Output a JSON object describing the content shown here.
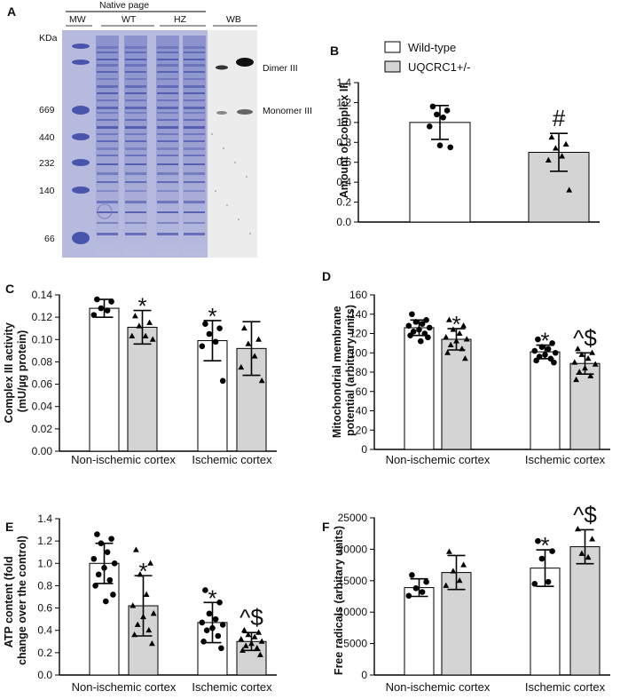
{
  "colors": {
    "wildtype_fill": "#ffffff",
    "mutant_fill": "#d4d4d4",
    "gel_bg": "#b9bde0",
    "gel_band": "#3d49a6",
    "wb_bg": "#e9e9e9",
    "axis": "#000000"
  },
  "gel": {
    "panel_label": "A",
    "header": "Native page",
    "lanes": [
      "MW",
      "WT",
      "HZ",
      "WB"
    ],
    "unit": "KDa",
    "markers": [
      "669",
      "440",
      "232",
      "140",
      "66"
    ],
    "band_labels": [
      "Dimer III",
      "Monomer III"
    ]
  },
  "legend": {
    "items": [
      "Wild-type",
      "UQCRC1+/-"
    ]
  },
  "chart_data": [
    {
      "id": "B",
      "panel_label": "B",
      "type": "bar",
      "ylabel": "Amount of complex III",
      "ylim": [
        0,
        1.4
      ],
      "yticks": [
        "0.0",
        "0.2",
        "0.4",
        "0.6",
        "0.8",
        "1.0",
        "1.2",
        "1.4"
      ],
      "groups": [
        {
          "label": "",
          "bars": [
            {
              "series": "Wild-type",
              "value": 1.0,
              "err": 0.17,
              "marker": "circle",
              "points": [
                1.16,
                1.12,
                1.08,
                1.05,
                0.96,
                0.75,
                0.77
              ],
              "annot": ""
            },
            {
              "series": "UQCRC1+/-",
              "value": 0.7,
              "err": 0.19,
              "marker": "triangle",
              "points": [
                0.85,
                0.78,
                0.74,
                0.66,
                0.62,
                0.32
              ],
              "annot": "#"
            }
          ]
        }
      ]
    },
    {
      "id": "C",
      "panel_label": "C",
      "type": "bar",
      "ylabel": "Complex III activity (mU/µg protein)",
      "ylim": [
        0,
        0.14
      ],
      "yticks": [
        "0.00",
        "0.02",
        "0.04",
        "0.06",
        "0.08",
        "0.10",
        "0.12",
        "0.14"
      ],
      "groups": [
        {
          "label": "Non-ischemic cortex",
          "bars": [
            {
              "series": "Wild-type",
              "value": 0.128,
              "err": 0.008,
              "marker": "circle",
              "points": [
                0.136,
                0.134,
                0.128,
                0.126,
                0.122
              ],
              "annot": ""
            },
            {
              "series": "UQCRC1+/-",
              "value": 0.111,
              "err": 0.015,
              "marker": "triangle",
              "points": [
                0.121,
                0.115,
                0.112,
                0.103,
                0.103,
                0.1
              ],
              "annot": "*"
            }
          ]
        },
        {
          "label": "Ischemic cortex",
          "bars": [
            {
              "series": "Wild-type",
              "value": 0.099,
              "err": 0.018,
              "marker": "circle",
              "points": [
                0.114,
                0.11,
                0.105,
                0.098,
                0.094,
                0.063
              ],
              "annot": "*"
            },
            {
              "series": "UQCRC1+/-",
              "value": 0.092,
              "err": 0.024,
              "marker": "triangle",
              "points": [
                0.11,
                0.1,
                0.096,
                0.085,
                0.075,
                0.063
              ],
              "annot": ""
            }
          ]
        }
      ]
    },
    {
      "id": "D",
      "panel_label": "D",
      "type": "bar",
      "ylabel": "Mitochondrial membrane potential (arbitrary units)",
      "ylim": [
        0,
        160
      ],
      "yticks": [
        "0",
        "20",
        "40",
        "60",
        "80",
        "100",
        "120",
        "140",
        "160"
      ],
      "groups": [
        {
          "label": "Non-ischemic cortex",
          "bars": [
            {
              "series": "Wild-type",
              "value": 126,
              "err": 8,
              "marker": "circle",
              "points": [
                140,
                134,
                132,
                130,
                128,
                126,
                124,
                122,
                120,
                118,
                116,
                112
              ],
              "annot": ""
            },
            {
              "series": "UQCRC1+/-",
              "value": 114,
              "err": 11,
              "marker": "triangle",
              "points": [
                134,
                128,
                124,
                120,
                116,
                114,
                112,
                108,
                104,
                100,
                94
              ],
              "annot": "*"
            }
          ]
        },
        {
          "label": "Ischemic cortex",
          "bars": [
            {
              "series": "Wild-type",
              "value": 101,
              "err": 7,
              "marker": "circle",
              "points": [
                114,
                110,
                106,
                104,
                102,
                100,
                98,
                96,
                94,
                92,
                90
              ],
              "annot": "*"
            },
            {
              "series": "UQCRC1+/-",
              "value": 89,
              "err": 11,
              "marker": "triangle",
              "points": [
                104,
                100,
                98,
                94,
                90,
                88,
                84,
                80,
                76,
                72
              ],
              "annot": "^$"
            }
          ]
        }
      ]
    },
    {
      "id": "E",
      "panel_label": "E",
      "type": "bar",
      "ylabel": "ATP content (fold change over the control)",
      "ylim": [
        0,
        1.4
      ],
      "yticks": [
        "0.0",
        "0.2",
        "0.4",
        "0.6",
        "0.8",
        "1.0",
        "1.2",
        "1.4"
      ],
      "groups": [
        {
          "label": "Non-ischemic cortex",
          "bars": [
            {
              "series": "Wild-type",
              "value": 1.0,
              "err": 0.18,
              "marker": "circle",
              "points": [
                1.26,
                1.22,
                1.18,
                1.1,
                1.04,
                1.0,
                0.96,
                0.9,
                0.85,
                0.8,
                0.72,
                0.66
              ],
              "annot": ""
            },
            {
              "series": "UQCRC1+/-",
              "value": 0.62,
              "err": 0.27,
              "marker": "triangle",
              "points": [
                1.12,
                1.0,
                0.9,
                0.72,
                0.62,
                0.55,
                0.52,
                0.45,
                0.4,
                0.36,
                0.28
              ],
              "annot": "*"
            }
          ]
        },
        {
          "label": "Ischemic cortex",
          "bars": [
            {
              "series": "Wild-type",
              "value": 0.47,
              "err": 0.18,
              "marker": "circle",
              "points": [
                0.76,
                0.65,
                0.55,
                0.5,
                0.47,
                0.45,
                0.42,
                0.4,
                0.35,
                0.3,
                0.24
              ],
              "annot": "*"
            },
            {
              "series": "UQCRC1+/-",
              "value": 0.3,
              "err": 0.08,
              "marker": "triangle",
              "points": [
                0.4,
                0.38,
                0.36,
                0.34,
                0.32,
                0.3,
                0.28,
                0.26,
                0.24,
                0.22,
                0.18
              ],
              "annot": "^$"
            }
          ]
        }
      ]
    },
    {
      "id": "F",
      "panel_label": "F",
      "type": "bar",
      "ylabel": "Free radicals (arbitary units)",
      "ylim": [
        0,
        25000
      ],
      "yticks": [
        "0",
        "5000",
        "10000",
        "15000",
        "20000",
        "25000"
      ],
      "groups": [
        {
          "label": "Non-ischemic cortex",
          "bars": [
            {
              "series": "Wild-type",
              "value": 13900,
              "err": 1400,
              "marker": "circle",
              "points": [
                15900,
                14800,
                13800,
                13200,
                12600
              ],
              "annot": ""
            },
            {
              "series": "UQCRC1+/-",
              "value": 16300,
              "err": 2700,
              "marker": "triangle",
              "points": [
                19600,
                17500,
                16500,
                15000,
                14200
              ],
              "annot": ""
            }
          ]
        },
        {
          "label": "Ischemic cortex",
          "bars": [
            {
              "series": "Wild-type",
              "value": 17000,
              "err": 2900,
              "marker": "circle",
              "points": [
                21300,
                19700,
                18500,
                14800,
                14500
              ],
              "annot": "*"
            },
            {
              "series": "UQCRC1+/-",
              "value": 20400,
              "err": 2700,
              "marker": "triangle",
              "points": [
                23200,
                21600,
                19300,
                18700
              ],
              "annot": "^$"
            }
          ]
        }
      ]
    }
  ]
}
